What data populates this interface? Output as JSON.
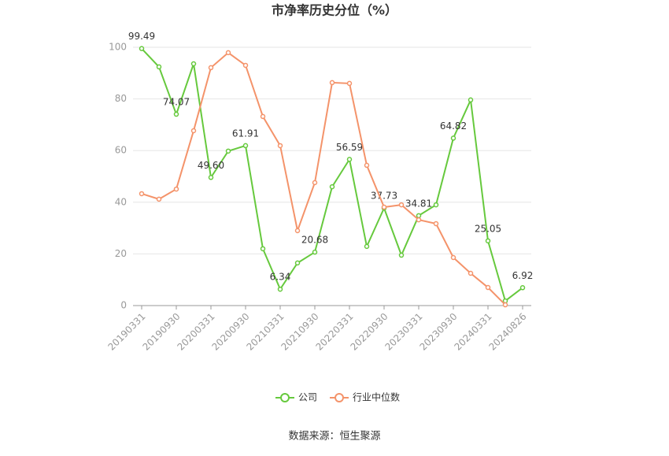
{
  "chart_data": {
    "type": "line",
    "title": "市净率历史分位（%）",
    "categories": [
      "20190331",
      null,
      "20190930",
      null,
      "20200331",
      null,
      "20200930",
      null,
      "20210331",
      null,
      "20210930",
      null,
      "20220331",
      null,
      "20220930",
      null,
      "20230331",
      null,
      "20230930",
      null,
      "20240331",
      null,
      "20240826"
    ],
    "series": [
      {
        "name": "公司",
        "color": "#66c93d",
        "values": [
          99.49,
          92.4,
          74.07,
          93.6,
          49.6,
          59.8,
          61.91,
          22.0,
          6.34,
          16.5,
          20.68,
          46.0,
          56.59,
          22.9,
          37.73,
          19.5,
          34.81,
          39.0,
          64.82,
          79.6,
          25.05,
          1.8,
          6.92
        ],
        "value_labels": [
          "99.49",
          null,
          "74.07",
          null,
          "49.60",
          null,
          "61.91",
          null,
          "6.34",
          null,
          "20.68",
          null,
          "56.59",
          null,
          "37.73",
          null,
          "34.81",
          null,
          "64.82",
          null,
          "25.05",
          null,
          "6.92"
        ]
      },
      {
        "name": "行业中位数",
        "color": "#f4936a",
        "values": [
          43.3,
          41.2,
          45.1,
          67.7,
          92.1,
          97.9,
          93.0,
          73.2,
          61.9,
          29.0,
          47.6,
          86.3,
          86.0,
          54.3,
          38.1,
          39.0,
          33.2,
          31.7,
          18.6,
          12.5,
          7.0,
          0.3,
          null
        ]
      }
    ],
    "ylim": [
      0,
      100
    ],
    "yticks": [
      0,
      20,
      40,
      60,
      80,
      100
    ],
    "grid": true,
    "legend": "bottom",
    "source": "数据来源：恒生聚源"
  }
}
